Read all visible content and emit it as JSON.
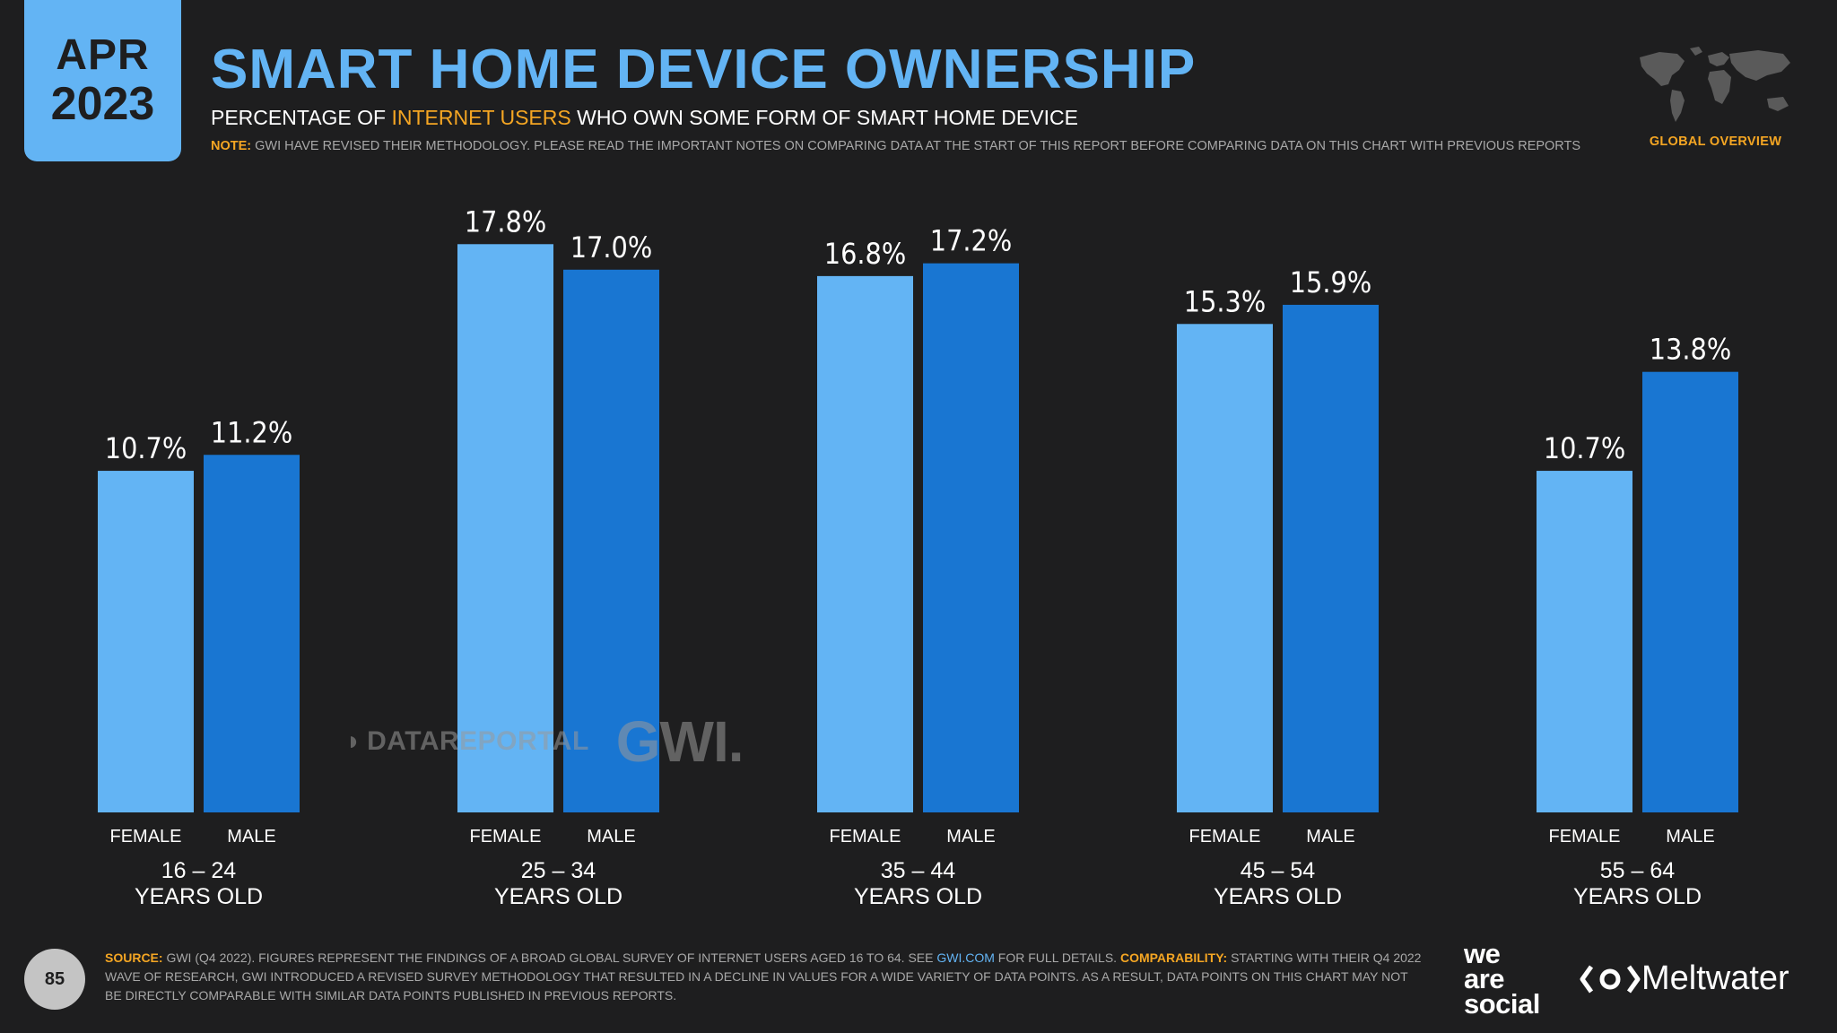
{
  "header": {
    "date_month": "APR",
    "date_year": "2023",
    "title": "SMART HOME DEVICE OWNERSHIP",
    "subtitle_pre": "PERCENTAGE OF ",
    "subtitle_highlight": "INTERNET USERS",
    "subtitle_post": " WHO OWN SOME FORM OF SMART HOME DEVICE",
    "note_label": "NOTE:",
    "note_text": " GWI HAVE REVISED THEIR METHODOLOGY. PLEASE READ THE IMPORTANT NOTES ON COMPARING DATA AT THE START OF THIS REPORT BEFORE COMPARING DATA ON THIS CHART WITH PREVIOUS REPORTS",
    "region_label": "GLOBAL OVERVIEW"
  },
  "chart_data": {
    "type": "bar",
    "title": "SMART HOME DEVICE OWNERSHIP",
    "categories": [
      "16 – 24",
      "25 – 34",
      "35 – 44",
      "45 – 54",
      "55 – 64"
    ],
    "category_suffix": "YEARS OLD",
    "series": [
      {
        "name": "FEMALE",
        "values": [
          10.7,
          17.8,
          16.8,
          15.3,
          10.7
        ]
      },
      {
        "name": "MALE",
        "values": [
          11.2,
          17.0,
          17.2,
          15.9,
          13.8
        ]
      }
    ],
    "value_suffix": "%",
    "ylim": [
      0,
      19.1
    ],
    "colors": {
      "FEMALE": "#63b4f4",
      "MALE": "#1976d2"
    },
    "xlabel": "",
    "ylabel": ""
  },
  "watermark": {
    "datareportal": "DATAREPORTAL",
    "gwi": "GWI."
  },
  "footer": {
    "page_number": "85",
    "source_label": "SOURCE:",
    "source_text_1": " GWI (Q4 2022). FIGURES REPRESENT THE FINDINGS OF A BROAD GLOBAL SURVEY OF INTERNET USERS AGED 16 TO 64. SEE ",
    "source_link": "GWI.COM",
    "source_text_2": " FOR FULL DETAILS. ",
    "comparability_label": "COMPARABILITY:",
    "comparability_text": " STARTING WITH THEIR Q4 2022 WAVE OF RESEARCH, GWI INTRODUCED A REVISED SURVEY METHODOLOGY THAT RESULTED IN A DECLINE IN VALUES FOR A WIDE VARIETY OF DATA POINTS. AS A RESULT, DATA POINTS ON THIS CHART MAY NOT BE DIRECTLY COMPARABLE WITH SIMILAR DATA POINTS PUBLISHED IN PREVIOUS REPORTS.",
    "brand_1_line1": "we",
    "brand_1_line2": "are",
    "brand_1_line3": "social",
    "brand_2": "Meltwater"
  },
  "colors": {
    "background": "#1e1e1f",
    "accent_blue": "#63b4f4",
    "dark_blue": "#1976d2",
    "accent_orange": "#f5a623"
  }
}
